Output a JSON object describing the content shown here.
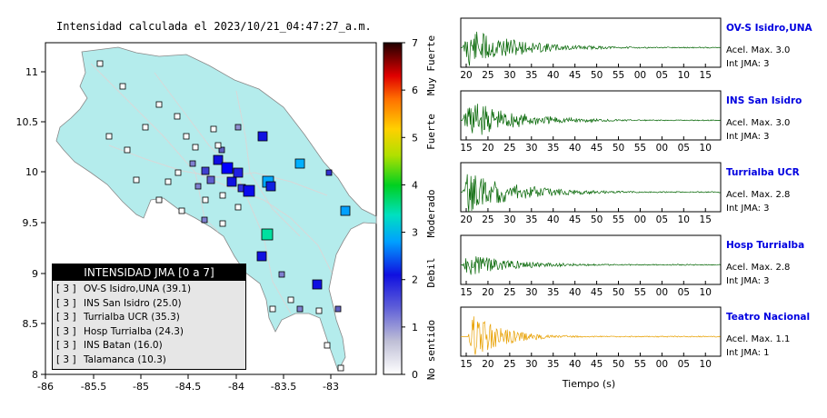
{
  "map": {
    "title": "Intensidad calculada el 2023/10/21_04:47:27_a.m.",
    "x_ticks": [
      "-86",
      "-85.5",
      "-85",
      "-84.5",
      "-84",
      "-83.5",
      "-83"
    ],
    "y_ticks": [
      "11",
      "10.5",
      "10",
      "9.5",
      "9",
      "8.5",
      "8"
    ],
    "colorbar_ticks": [
      "7",
      "6",
      "5",
      "4",
      "3",
      "2",
      "1",
      "0"
    ],
    "colorbar_labels": [
      "Muy Fuerte",
      "Fuerte",
      "Moderado",
      "Debil",
      "No sentido"
    ],
    "land_color": "#b4ecec",
    "legend": {
      "title": "INTENSIDAD JMA [0 a 7]",
      "rows": [
        {
          "int": "[ 3 ]",
          "name": "OV-S Isidro,UNA (39.1)"
        },
        {
          "int": "[ 3 ]",
          "name": "INS San Isidro (25.0)"
        },
        {
          "int": "[ 3 ]",
          "name": "Turrialba UCR (35.3)"
        },
        {
          "int": "[ 3 ]",
          "name": "Hosp Turrialba (24.3)"
        },
        {
          "int": "[ 3 ]",
          "name": "INS Batan (16.0)"
        },
        {
          "int": "[ 3 ]",
          "name": "Talamanca (10.3)"
        }
      ]
    }
  },
  "chart_data": {
    "type": "line",
    "xlabel": "Tiempo (s)",
    "traces": [
      {
        "station": "OV-S Isidro,UNA",
        "accel": "Acel. Max. 3.0",
        "int": "Int JMA: 3",
        "color": "#006400",
        "ticks": [
          "20",
          "25",
          "30",
          "35",
          "40",
          "45",
          "50",
          "55",
          "00",
          "05",
          "10",
          "15"
        ]
      },
      {
        "station": "INS San Isidro",
        "accel": "Acel. Max. 3.0",
        "int": "Int JMA: 3",
        "color": "#006400",
        "ticks": [
          "15",
          "20",
          "25",
          "30",
          "35",
          "40",
          "45",
          "50",
          "55",
          "00",
          "05",
          "10"
        ]
      },
      {
        "station": "Turrialba UCR",
        "accel": "Acel. Max. 2.8",
        "int": "Int JMA: 3",
        "color": "#006400",
        "ticks": [
          "20",
          "25",
          "30",
          "35",
          "40",
          "45",
          "50",
          "55",
          "00",
          "05",
          "10",
          "15"
        ]
      },
      {
        "station": "Hosp Turrialba",
        "accel": "Acel. Max. 2.8",
        "int": "Int JMA: 3",
        "color": "#006400",
        "ticks": [
          "15",
          "20",
          "25",
          "30",
          "35",
          "40",
          "45",
          "50",
          "55",
          "00",
          "05",
          "10"
        ]
      },
      {
        "station": "Teatro Nacional",
        "accel": "Acel. Max. 1.1",
        "int": "Int JMA: 1",
        "color": "#e8a000",
        "ticks": [
          "15",
          "20",
          "25",
          "30",
          "35",
          "40",
          "45",
          "50",
          "55",
          "00",
          "05",
          "10"
        ]
      }
    ]
  }
}
